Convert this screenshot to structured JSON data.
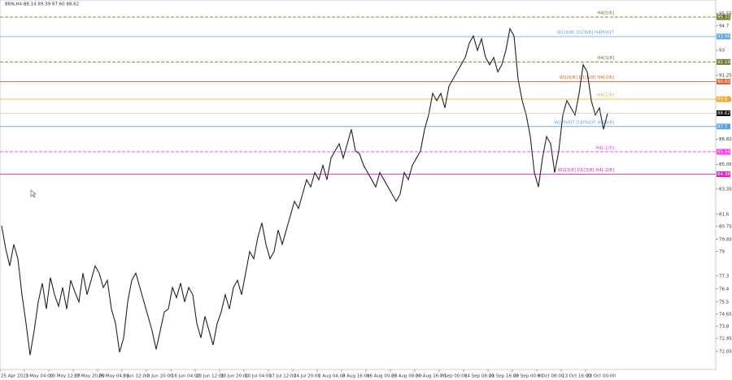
{
  "chart_data": {
    "type": "line",
    "title": "BRN,H4  88.14 89.39 87.60 88.62",
    "color": "#222222",
    "values": [
      80.8,
      79.2,
      78.0,
      79.5,
      78.5,
      76.0,
      74.0,
      71.8,
      73.5,
      75.5,
      76.8,
      75.0,
      77.2,
      76.0,
      75.2,
      76.5,
      75.0,
      77.0,
      76.2,
      75.5,
      77.5,
      76.0,
      77.0,
      78.0,
      77.5,
      76.5,
      77.0,
      75.0,
      74.0,
      72.0,
      73.0,
      75.5,
      77.0,
      77.5,
      76.5,
      75.5,
      74.5,
      73.5,
      72.2,
      73.5,
      74.8,
      75.0,
      76.5,
      75.8,
      76.8,
      75.5,
      76.5,
      76.0,
      74.0,
      73.0,
      74.5,
      73.5,
      72.5,
      74.0,
      74.8,
      76.0,
      75.0,
      76.5,
      77.0,
      76.0,
      77.5,
      79.0,
      78.5,
      80.0,
      81.0,
      79.5,
      78.5,
      79.0,
      80.5,
      79.5,
      80.5,
      81.5,
      82.5,
      82.0,
      83.0,
      84.0,
      83.5,
      84.5,
      84.0,
      85.0,
      84.0,
      85.5,
      86.0,
      86.5,
      85.5,
      86.5,
      87.5,
      86.0,
      85.8,
      85.0,
      84.5,
      84.0,
      83.5,
      84.5,
      84.0,
      83.5,
      83.0,
      82.5,
      83.0,
      84.5,
      84.0,
      85.0,
      85.5,
      86.0,
      87.5,
      88.5,
      90.0,
      89.5,
      90.0,
      89.0,
      90.5,
      91.0,
      91.5,
      92.0,
      92.5,
      93.5,
      94.0,
      93.0,
      93.8,
      92.5,
      92.0,
      92.5,
      91.5,
      92.0,
      93.0,
      94.5,
      94.0,
      91.0,
      89.5,
      88.5,
      87.0,
      84.5,
      83.5,
      85.5,
      87.0,
      86.5,
      84.5,
      86.0,
      88.5,
      89.5,
      89.0,
      88.5,
      90.0,
      92.0,
      91.5,
      89.5,
      88.5,
      89.0,
      87.5,
      88.62
    ],
    "xlim": [
      0,
      176
    ],
    "xticks": [
      {
        "value": 0,
        "label": "25 Apr 2023"
      },
      {
        "value": 6,
        "label": "3 May 04:00"
      },
      {
        "value": 12,
        "label": "10 May 12:00"
      },
      {
        "value": 18,
        "label": "17 May 20:00"
      },
      {
        "value": 24,
        "label": "25 May 04:00"
      },
      {
        "value": 30,
        "label": "1 Jun 12:00"
      },
      {
        "value": 36,
        "label": "8 Jun 20:00"
      },
      {
        "value": 42,
        "label": "16 Jun 04:00"
      },
      {
        "value": 48,
        "label": "23 Jun 12:00"
      },
      {
        "value": 54,
        "label": "30 Jun 20:00"
      },
      {
        "value": 60,
        "label": "10 Jul 04:00"
      },
      {
        "value": 66,
        "label": "17 Jul 12:00"
      },
      {
        "value": 72,
        "label": "24 Jul 20:00"
      },
      {
        "value": 78,
        "label": "1 Aug 04:00"
      },
      {
        "value": 84,
        "label": "8 Aug 16:00"
      },
      {
        "value": 90,
        "label": "16 Aug 00:00"
      },
      {
        "value": 96,
        "label": "23 Aug 08:00"
      },
      {
        "value": 102,
        "label": "30 Aug 16:00"
      },
      {
        "value": 108,
        "label": "7 Sep 00:00"
      },
      {
        "value": 114,
        "label": "14 Sep 08:00"
      },
      {
        "value": 120,
        "label": "21 Sep 16:00"
      },
      {
        "value": 126,
        "label": "29 Sep 00:00"
      },
      {
        "value": 132,
        "label": "6 Oct 08:00"
      },
      {
        "value": 138,
        "label": "13 Oct 16:00"
      },
      {
        "value": 144,
        "label": "23 Oct 00:00"
      }
    ],
    "ylim": [
      70.8,
      96.5
    ],
    "yticks": [
      95.55,
      94.7,
      93.0,
      91.25,
      89.55,
      87.7,
      86.82,
      85.05,
      83.35,
      81.6,
      80.75,
      79.85,
      79.0,
      77.3,
      76.4,
      75.5,
      74.65,
      73.8,
      72.95,
      72.05
    ],
    "last_price": 88.62,
    "levels": [
      {
        "value": 95.31,
        "label": "H4[5/8]",
        "color": "#6b7a2a",
        "dashed": true
      },
      {
        "value": 93.96,
        "label": "W1[8/8] D1[8/8] H4PIVOT",
        "color": "#5aa0e6",
        "dashed": false
      },
      {
        "value": 92.19,
        "label": "H4[3/8]",
        "color": "#6b7a2a",
        "dashed": true
      },
      {
        "value": 90.82,
        "label": "W1[6/8] D1[6/8] H4[2/8]",
        "color": "#e8602c",
        "dashed": false
      },
      {
        "value": 89.6,
        "label": "H4[1/8]",
        "color": "#f5a623",
        "dashed": false
      },
      {
        "value": 87.7,
        "label": "W1PIVOT D1PIVOT H4[0/8]",
        "color": "#5aa0e6",
        "dashed": false
      },
      {
        "value": 85.94,
        "label": "H4[-1/8]",
        "color": "#ff33ff",
        "dashed": true
      },
      {
        "value": 84.38,
        "label": "W1[3/8] D1[3/8] H4[-2/8]",
        "color": "#e020c0",
        "dashed": false
      }
    ]
  }
}
